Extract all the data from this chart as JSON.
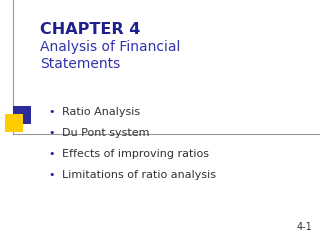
{
  "background_color": "#ffffff",
  "chapter_title": "CHAPTER 4",
  "chapter_title_color": "#1F1F8F",
  "subtitle": "Analysis of Financial\nStatements",
  "subtitle_color": "#3333AA",
  "bullet_points": [
    "Ratio Analysis",
    "Du Pont system",
    "Effects of improving ratios",
    "Limitations of ratio analysis"
  ],
  "bullet_color": "#333333",
  "bullet_dot_color": "#2222AA",
  "page_number": "4-1",
  "page_number_color": "#333333",
  "line_color": "#999999",
  "icon_colors": {
    "blue": "#2B2B9B",
    "yellow": "#FFCC00",
    "red": "#DD2222"
  }
}
